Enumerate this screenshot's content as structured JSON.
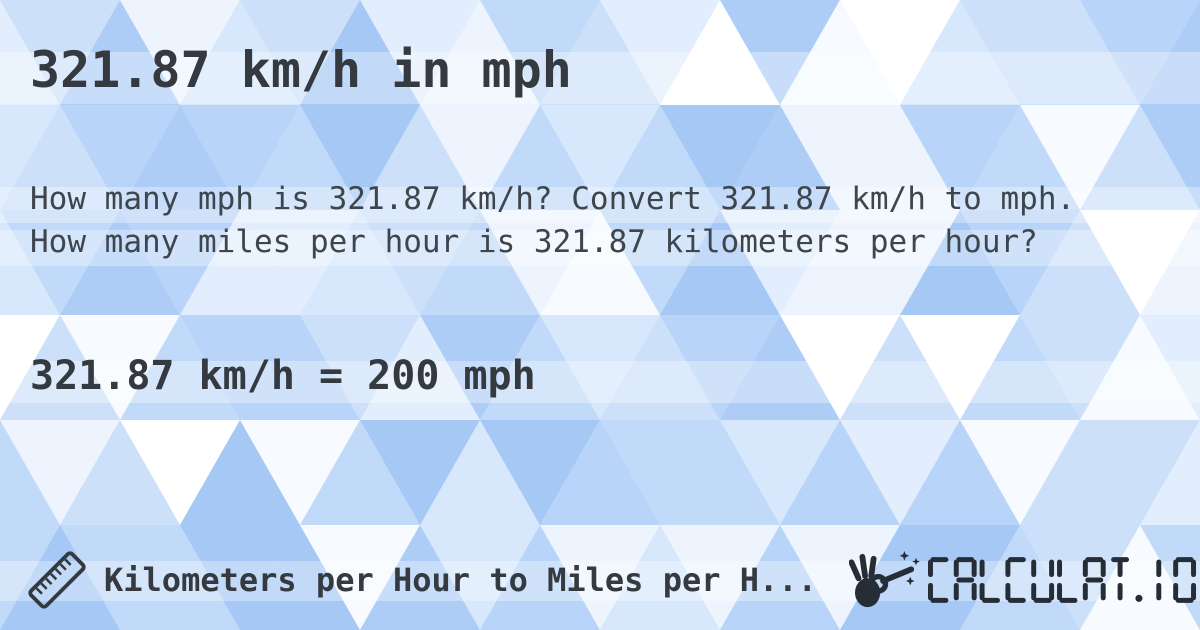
{
  "page": {
    "title": "321.87 km/h in mph",
    "description": "How many mph is 321.87 km/h? Convert 321.87 km/h to mph. How many miles per hour is 321.87 kilometers per hour?",
    "result": "321.87 km/h = 200 mph"
  },
  "footer": {
    "category_label": "Kilometers per Hour to Miles per H...",
    "ruler_icon": "ruler-icon",
    "logo": {
      "icon": "magic-wand-hand-icon",
      "text": "CALCULAT.IO"
    }
  },
  "colors": {
    "text_primary": "#343a40",
    "text_body": "#3e454c",
    "logo": "#272d36",
    "highlight_band": "rgba(255,255,255,0.32)",
    "background_palette": [
      "#a5c8f4",
      "#aecdf6",
      "#b8d4f8",
      "#c2daf9",
      "#cce0fa",
      "#d7e8fc",
      "#e2eefd",
      "#edf4fe",
      "#f7fbff",
      "#ffffff"
    ]
  }
}
